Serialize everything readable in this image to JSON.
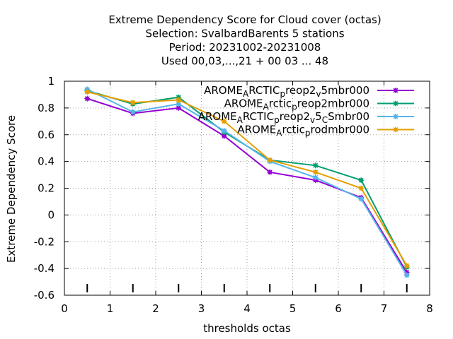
{
  "chart_data": {
    "type": "line",
    "title_lines": [
      "Extreme Dependency Score  for Cloud cover (octas)",
      "Selection: SvalbardBarents       5 stations",
      "Period: 20231002-20231008",
      "Used  00,03,...,21  + 00 03 ... 48"
    ],
    "xlabel": "thresholds octas",
    "ylabel": "Extreme Dependency Score",
    "xlim": [
      0,
      8
    ],
    "ylim": [
      -0.6,
      1
    ],
    "x_ticks": [
      "0",
      "1",
      "2",
      "3",
      "4",
      "5",
      "6",
      "7",
      "8"
    ],
    "y_ticks": [
      "-0.6",
      "-0.4",
      "-0.2",
      "0",
      "0.2",
      "0.4",
      "0.6",
      "0.8",
      "1"
    ],
    "grid": true,
    "legend_position": "top-right",
    "threshold_markers_x": [
      0.5,
      1.5,
      2.5,
      3.5,
      4.5,
      5.5,
      6.5,
      7.5
    ],
    "x": [
      0.5,
      1.5,
      2.5,
      3.5,
      4.5,
      5.5,
      6.5,
      7.5
    ],
    "series": [
      {
        "name": "AROME_ARCTIC_preop2_v5mbr000",
        "legend_parts": [
          [
            "AROME",
            ""
          ],
          [
            "A",
            "sub"
          ],
          [
            "RCTIC",
            ""
          ],
          [
            "p",
            "sub"
          ],
          [
            "reop2",
            ""
          ],
          [
            "v",
            "sub"
          ],
          [
            "5mbr000",
            ""
          ]
        ],
        "color": "#9400d3",
        "values": [
          0.87,
          0.76,
          0.8,
          0.59,
          0.32,
          0.26,
          0.13,
          -0.43
        ]
      },
      {
        "name": "AROME_Arctic_preop2mbr000",
        "legend_parts": [
          [
            "AROME",
            ""
          ],
          [
            "A",
            "sub"
          ],
          [
            "rctic",
            ""
          ],
          [
            "p",
            "sub"
          ],
          [
            "reop2mbr000",
            ""
          ]
        ],
        "color": "#009e73",
        "values": [
          0.93,
          0.83,
          0.88,
          0.62,
          0.41,
          0.37,
          0.26,
          -0.39
        ]
      },
      {
        "name": "AROME_ARCTIC_preop2_v5_CSmbr00",
        "legend_parts": [
          [
            "AROME",
            ""
          ],
          [
            "A",
            "sub"
          ],
          [
            "RCTIC",
            ""
          ],
          [
            "p",
            "sub"
          ],
          [
            "reop2",
            ""
          ],
          [
            "v",
            "sub"
          ],
          [
            "5",
            ""
          ],
          [
            "C",
            "sub"
          ],
          [
            "Smbr00",
            ""
          ]
        ],
        "color": "#56b4e9",
        "values": [
          0.94,
          0.77,
          0.83,
          0.63,
          0.4,
          0.28,
          0.12,
          -0.45
        ]
      },
      {
        "name": "AROME_Arctic_prodmbr000",
        "legend_parts": [
          [
            "AROME",
            ""
          ],
          [
            "A",
            "sub"
          ],
          [
            "rctic",
            ""
          ],
          [
            "p",
            "sub"
          ],
          [
            "rodmbr000",
            ""
          ]
        ],
        "color": "#e69f00",
        "values": [
          0.92,
          0.84,
          0.86,
          0.7,
          0.41,
          0.32,
          0.2,
          -0.38
        ]
      }
    ]
  }
}
